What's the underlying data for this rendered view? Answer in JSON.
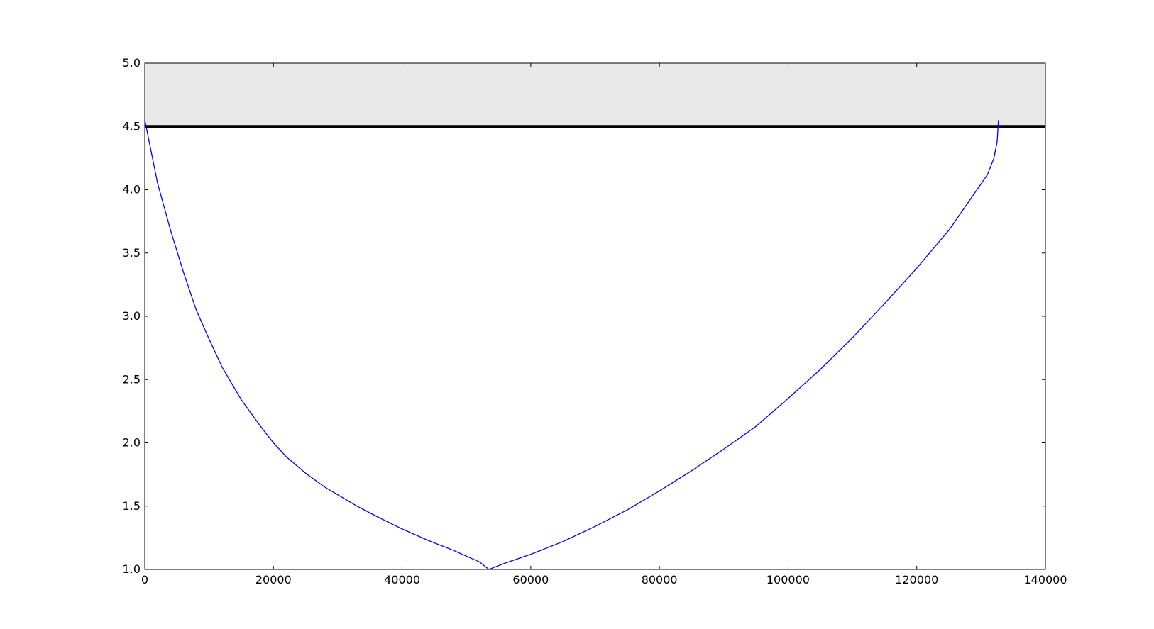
{
  "chart_data": {
    "type": "line",
    "title": "",
    "xlabel": "",
    "ylabel": "",
    "xlim": [
      0,
      140000
    ],
    "ylim": [
      1.0,
      5.0
    ],
    "x_ticks": [
      0,
      20000,
      40000,
      60000,
      80000,
      100000,
      120000,
      140000
    ],
    "y_ticks": [
      1.0,
      1.5,
      2.0,
      2.5,
      3.0,
      3.5,
      4.0,
      4.5,
      5.0
    ],
    "x_tick_labels": [
      "0",
      "20000",
      "40000",
      "60000",
      "80000",
      "100000",
      "120000",
      "140000"
    ],
    "y_tick_labels": [
      "1.0",
      "1.5",
      "2.0",
      "2.5",
      "3.0",
      "3.5",
      "4.0",
      "4.5",
      "5.0"
    ],
    "grid": false,
    "shaded_band": {
      "y_from": 4.5,
      "y_to": 5.0,
      "color": "#e9e9e9"
    },
    "horizontal_line": {
      "y": 4.5,
      "color": "#000000"
    },
    "series": [
      {
        "color": "#0000ff",
        "x": [
          0,
          2000,
          4000,
          6000,
          8000,
          10000,
          12000,
          15000,
          18000,
          20000,
          22000,
          25000,
          28000,
          30000,
          33000,
          36000,
          40000,
          44000,
          48000,
          52000,
          53500,
          56000,
          60000,
          65000,
          70000,
          75000,
          80000,
          85000,
          90000,
          95000,
          100000,
          105000,
          110000,
          115000,
          120000,
          125000,
          128000,
          131000,
          132000,
          132500,
          132700
        ],
        "y": [
          4.55,
          4.05,
          3.68,
          3.35,
          3.05,
          2.82,
          2.6,
          2.34,
          2.13,
          2.0,
          1.89,
          1.76,
          1.65,
          1.59,
          1.5,
          1.42,
          1.32,
          1.23,
          1.15,
          1.06,
          1.0,
          1.05,
          1.12,
          1.22,
          1.34,
          1.47,
          1.62,
          1.78,
          1.95,
          2.13,
          2.35,
          2.58,
          2.83,
          3.1,
          3.38,
          3.68,
          3.9,
          4.12,
          4.25,
          4.38,
          4.55
        ]
      }
    ]
  }
}
